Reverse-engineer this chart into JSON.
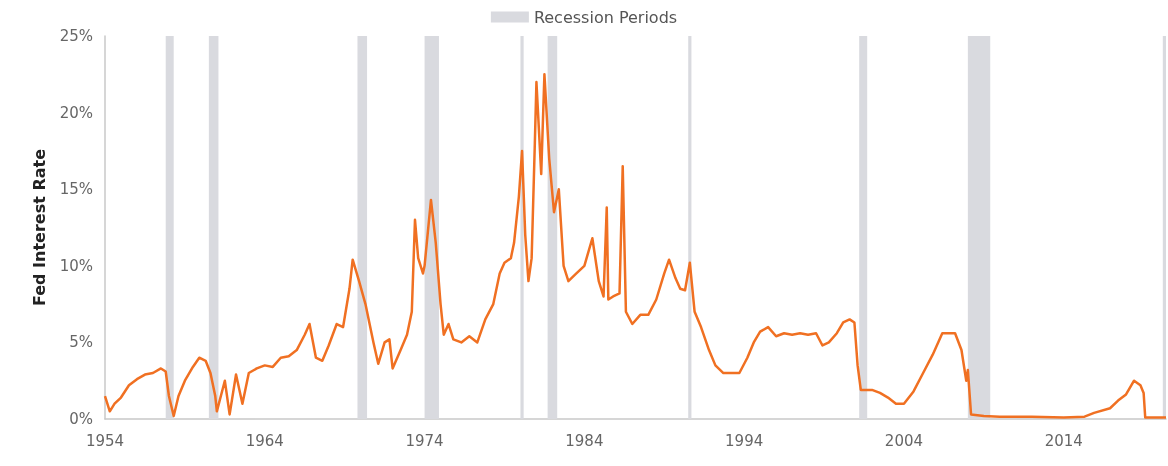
{
  "chart_data": {
    "type": "line",
    "ylabel": "Fed Interest Rate",
    "legend": "top",
    "xlim": [
      1954,
      2020.4
    ],
    "xticks": [
      1954,
      1964,
      1974,
      1984,
      1994,
      2004,
      2014
    ],
    "ylim": [
      0,
      25
    ],
    "yticks": [
      {
        "value": 0,
        "label": "0%"
      },
      {
        "value": 5,
        "label": "5%"
      },
      {
        "value": 10,
        "label": "10%"
      },
      {
        "value": 15,
        "label": "15%"
      },
      {
        "value": 20,
        "label": "20%"
      },
      {
        "value": 25,
        "label": "25%"
      }
    ],
    "grid": false,
    "marker": "none",
    "line_style": "solid",
    "bands": [
      {
        "axis": "x",
        "from": 1957.8,
        "to": 1958.3,
        "label": "Recession Periods",
        "color": "#d9dadf"
      },
      {
        "axis": "x",
        "from": 1960.5,
        "to": 1961.1,
        "color": "#d9dadf"
      },
      {
        "axis": "x",
        "from": 1969.8,
        "to": 1970.4,
        "color": "#d9dadf"
      },
      {
        "axis": "x",
        "from": 1974.0,
        "to": 1974.9,
        "color": "#d9dadf"
      },
      {
        "axis": "x",
        "from": 1980.0,
        "to": 1980.2,
        "color": "#d9dadf"
      },
      {
        "axis": "x",
        "from": 1981.7,
        "to": 1982.3,
        "color": "#d9dadf"
      },
      {
        "axis": "x",
        "from": 1990.5,
        "to": 1990.7,
        "color": "#d9dadf"
      },
      {
        "axis": "x",
        "from": 2001.2,
        "to": 2001.7,
        "color": "#d9dadf"
      },
      {
        "axis": "x",
        "from": 2008.0,
        "to": 2009.4,
        "color": "#d9dadf"
      },
      {
        "axis": "x",
        "from": 2020.2,
        "to": 2020.4,
        "color": "#d9dadf"
      }
    ],
    "series": [
      {
        "color": "#f07022",
        "x": [
          1954.0,
          1954.3,
          1954.6,
          1955.0,
          1955.5,
          1956.0,
          1956.5,
          1957.0,
          1957.5,
          1957.8,
          1958.0,
          1958.3,
          1958.6,
          1959.0,
          1959.5,
          1959.9,
          1960.3,
          1960.6,
          1960.9,
          1961.0,
          1961.5,
          1961.8,
          1962.2,
          1962.6,
          1963.0,
          1963.5,
          1964.0,
          1964.5,
          1965.0,
          1965.5,
          1966.0,
          1966.5,
          1966.8,
          1967.2,
          1967.6,
          1968.0,
          1968.5,
          1968.9,
          1969.3,
          1969.5,
          1969.9,
          1970.3,
          1970.8,
          1971.1,
          1971.5,
          1971.8,
          1972.0,
          1972.5,
          1972.9,
          1973.2,
          1973.4,
          1973.6,
          1973.9,
          1974.0,
          1974.4,
          1974.7,
          1975.0,
          1975.2,
          1975.5,
          1975.8,
          1976.3,
          1976.8,
          1977.3,
          1977.8,
          1978.3,
          1978.7,
          1979.0,
          1979.4,
          1979.6,
          1979.9,
          1980.1,
          1980.3,
          1980.5,
          1980.7,
          1980.9,
          1981.0,
          1981.3,
          1981.5,
          1981.8,
          1982.1,
          1982.4,
          1982.7,
          1983.0,
          1983.5,
          1984.0,
          1984.5,
          1984.9,
          1985.2,
          1985.4,
          1985.5,
          1985.8,
          1986.2,
          1986.4,
          1986.6,
          1987.0,
          1987.5,
          1988.0,
          1988.5,
          1989.0,
          1989.3,
          1989.7,
          1990.0,
          1990.3,
          1990.6,
          1990.9,
          1991.3,
          1991.8,
          1992.2,
          1992.7,
          1993.2,
          1993.7,
          1994.2,
          1994.6,
          1995.0,
          1995.5,
          1996.0,
          1996.5,
          1997.0,
          1997.5,
          1998.0,
          1998.5,
          1998.9,
          1999.3,
          1999.8,
          2000.2,
          2000.6,
          2000.9,
          2001.1,
          2001.3,
          2002.0,
          2002.5,
          2003.0,
          2003.5,
          2004.0,
          2004.6,
          2005.2,
          2005.8,
          2006.4,
          2007.2,
          2007.6,
          2007.9,
          2008.0,
          2008.2,
          2009.0,
          2010.0,
          2012.0,
          2014.0,
          2015.3,
          2015.9,
          2016.9,
          2017.4,
          2017.9,
          2018.4,
          2018.8,
          2019.0,
          2019.1,
          2020.4
        ],
        "values": [
          1.5,
          0.5,
          1.0,
          1.4,
          2.2,
          2.6,
          2.9,
          3.0,
          3.3,
          3.1,
          1.5,
          0.2,
          1.5,
          2.5,
          3.4,
          4.0,
          3.8,
          3.0,
          1.5,
          0.5,
          2.5,
          0.3,
          2.9,
          1.0,
          3.0,
          3.3,
          3.5,
          3.4,
          4.0,
          4.1,
          4.5,
          5.5,
          6.2,
          4.0,
          3.8,
          4.8,
          6.2,
          6.0,
          8.5,
          10.4,
          9.0,
          7.5,
          5.0,
          3.6,
          5.0,
          5.2,
          3.3,
          4.5,
          5.5,
          7.0,
          13.0,
          10.5,
          9.5,
          10.0,
          14.3,
          11.5,
          7.5,
          5.5,
          6.2,
          5.2,
          5.0,
          5.4,
          5.0,
          6.5,
          7.5,
          9.5,
          10.2,
          10.5,
          11.5,
          14.5,
          17.5,
          12.0,
          9.0,
          10.5,
          18.0,
          22.0,
          16.0,
          22.5,
          17.0,
          13.5,
          15.0,
          10.0,
          9.0,
          9.5,
          10.0,
          11.8,
          9.0,
          8.0,
          13.8,
          7.8,
          8.0,
          8.2,
          16.5,
          7.0,
          6.2,
          6.8,
          6.8,
          7.8,
          9.5,
          10.4,
          9.2,
          8.5,
          8.4,
          10.2,
          7.0,
          6.0,
          4.5,
          3.5,
          3.0,
          3.0,
          3.0,
          4.0,
          5.0,
          5.7,
          6.0,
          5.4,
          5.6,
          5.5,
          5.6,
          5.5,
          5.6,
          4.8,
          5.0,
          5.6,
          6.3,
          6.5,
          6.3,
          3.5,
          1.9,
          1.9,
          1.7,
          1.4,
          1.0,
          1.0,
          1.8,
          3.0,
          4.2,
          5.6,
          5.6,
          4.5,
          2.5,
          3.2,
          0.3,
          0.2,
          0.15,
          0.15,
          0.1,
          0.15,
          0.4,
          0.7,
          1.2,
          1.6,
          2.5,
          2.2,
          1.7,
          0.1,
          0.1
        ]
      }
    ]
  }
}
